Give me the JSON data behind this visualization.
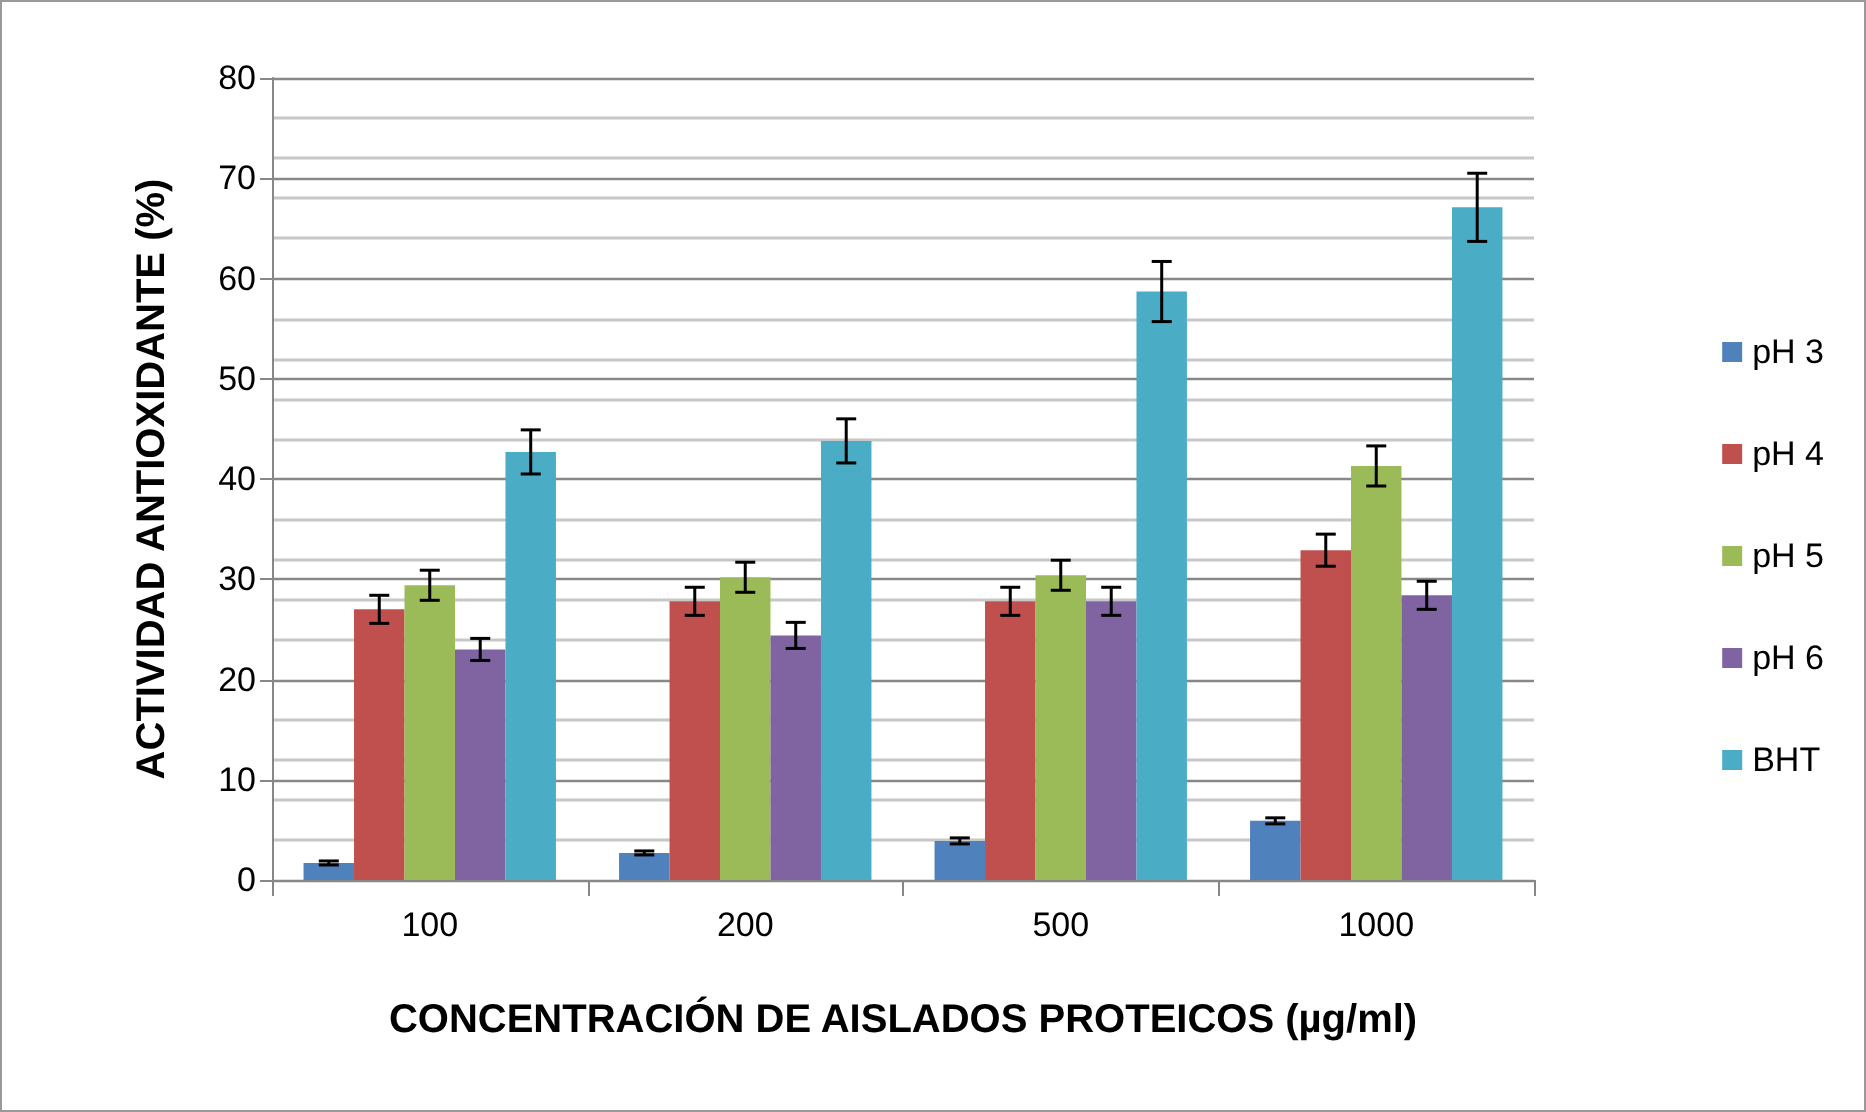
{
  "chart_data": {
    "type": "bar",
    "xlabel": "CONCENTRACIÓN DE AISLADOS PROTEICOS (µg/ml)",
    "ylabel": "ACTIVIDAD ANTIOXIDANTE (%)",
    "categories": [
      "100",
      "200",
      "500",
      "1000"
    ],
    "series": [
      {
        "name": "pH 3",
        "color": "#4f81bd",
        "values": [
          1.7,
          2.7,
          3.9,
          5.9
        ],
        "errors": [
          0.2,
          0.2,
          0.3,
          0.3
        ]
      },
      {
        "name": "pH 4",
        "color": "#c0504d",
        "values": [
          27.0,
          27.8,
          27.8,
          32.9
        ],
        "errors": [
          1.4,
          1.4,
          1.4,
          1.6
        ]
      },
      {
        "name": "pH 5",
        "color": "#9bbb59",
        "values": [
          29.4,
          30.2,
          30.4,
          41.3
        ],
        "errors": [
          1.5,
          1.5,
          1.5,
          2.0
        ]
      },
      {
        "name": "pH 6",
        "color": "#8064a2",
        "values": [
          23.0,
          24.4,
          27.8,
          28.4
        ],
        "errors": [
          1.1,
          1.3,
          1.4,
          1.4
        ]
      },
      {
        "name": "BHT",
        "color": "#4bacc6",
        "values": [
          42.7,
          43.8,
          58.7,
          67.1
        ],
        "errors": [
          2.2,
          2.2,
          3.0,
          3.4
        ]
      }
    ],
    "ylim": [
      0,
      80
    ],
    "yticks": [
      0,
      10,
      20,
      30,
      40,
      50,
      60,
      70,
      80
    ],
    "grid": "y",
    "legend": "right"
  }
}
